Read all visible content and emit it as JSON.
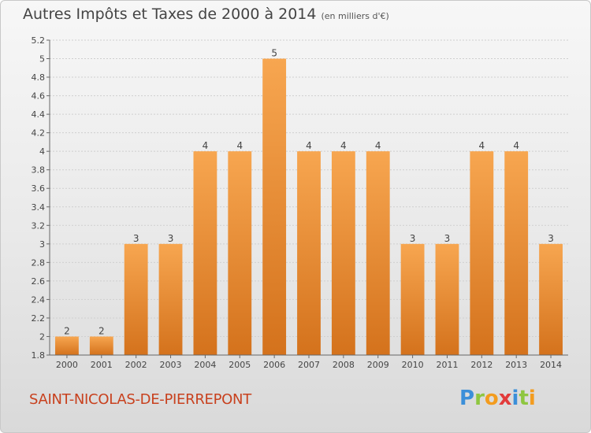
{
  "header": {
    "title": "Autres Impôts et Taxes de 2000 à 2014",
    "subtitle": "(en milliers d'€)"
  },
  "footer": {
    "town": "SAINT-NICOLAS-DE-PIERREPONT",
    "logo": "Proxiti"
  },
  "colors": {
    "bar_light": "#f7a650",
    "bar_dark": "#d4721c",
    "grid": "#cfcfcf"
  },
  "chart_data": {
    "type": "bar",
    "title": "Autres Impôts et Taxes de 2000 à 2014",
    "subtitle": "(en milliers d'€)",
    "categories": [
      "2000",
      "2001",
      "2002",
      "2003",
      "2004",
      "2005",
      "2006",
      "2007",
      "2008",
      "2009",
      "2010",
      "2011",
      "2012",
      "2013",
      "2014"
    ],
    "values": [
      2,
      2,
      3,
      3,
      4,
      4,
      5,
      4,
      4,
      4,
      3,
      3,
      4,
      4,
      3
    ],
    "value_labels": [
      "2",
      "2",
      "3",
      "3",
      "4",
      "4",
      "5",
      "4",
      "4",
      "4",
      "3",
      "3",
      "4",
      "4",
      "3"
    ],
    "ylim": [
      1.8,
      5.2
    ],
    "y_ticks": [
      1.8,
      2,
      2.2,
      2.4,
      2.6,
      2.8,
      3,
      3.2,
      3.4,
      3.6,
      3.8,
      4,
      4.2,
      4.4,
      4.6,
      4.8,
      5,
      5.2
    ],
    "y_tick_labels": [
      "1.8",
      "2",
      "2.2",
      "2.4",
      "2.6",
      "2.8",
      "3",
      "3.2",
      "3.4",
      "3.6",
      "3.8",
      "4",
      "4.2",
      "4.4",
      "4.6",
      "4.8",
      "5",
      "5.2"
    ],
    "grid": true,
    "legend": "none"
  }
}
